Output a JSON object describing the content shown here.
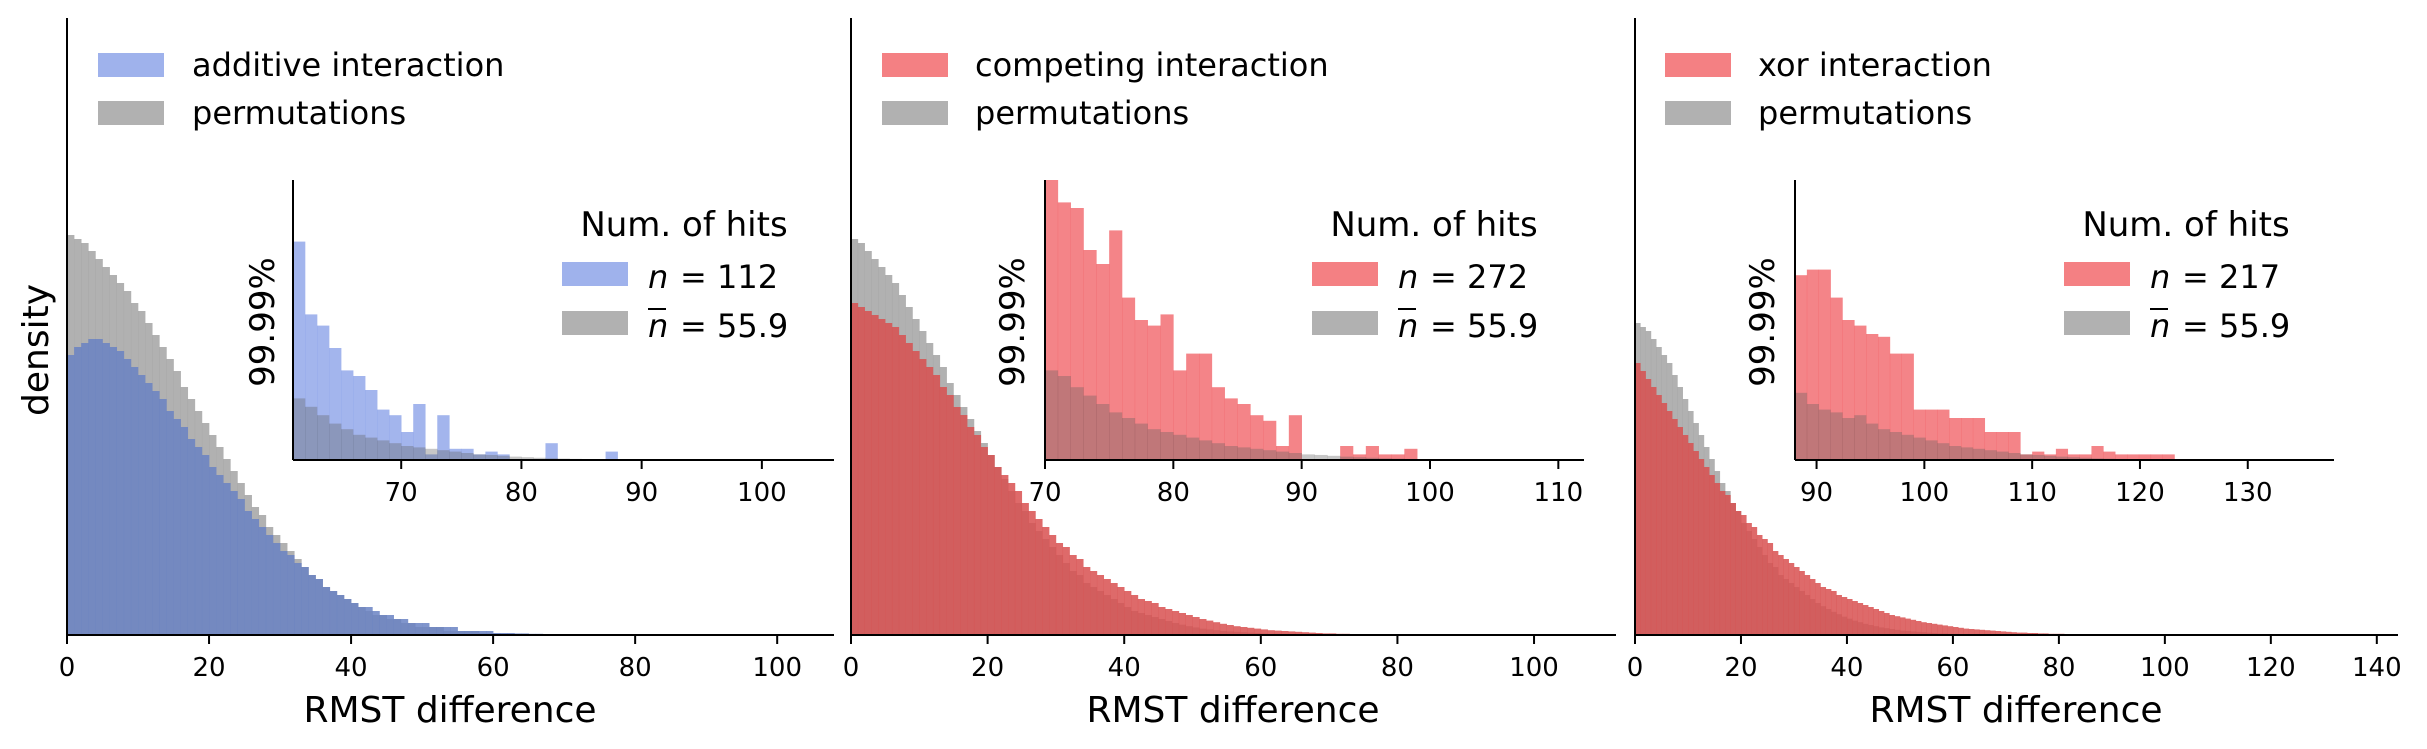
{
  "y_axis_label": "density",
  "colors": {
    "blue": "#7f98e6",
    "red": "#f0555a",
    "gray": "#9e9e9e",
    "blue_overlap": "#6a82c3",
    "red_overlap": "#d85050"
  },
  "chart_data": [
    {
      "type": "bar",
      "subtype": "overlaid-histogram",
      "xlabel": "RMST difference",
      "ylabel": "density",
      "xlim": [
        0,
        108
      ],
      "xticks": [
        0,
        20,
        40,
        60,
        80,
        100
      ],
      "color": "blue",
      "legend": {
        "placement": "top-left",
        "entries": [
          "additive interaction",
          "permutations"
        ]
      },
      "main_bins": {
        "x_start": 0,
        "bin_width": 1,
        "interaction": [
          0.7,
          0.72,
          0.73,
          0.74,
          0.74,
          0.73,
          0.72,
          0.71,
          0.69,
          0.67,
          0.65,
          0.63,
          0.61,
          0.59,
          0.56,
          0.54,
          0.52,
          0.49,
          0.47,
          0.45,
          0.42,
          0.4,
          0.38,
          0.36,
          0.34,
          0.31,
          0.29,
          0.27,
          0.25,
          0.23,
          0.21,
          0.2,
          0.18,
          0.17,
          0.15,
          0.14,
          0.12,
          0.11,
          0.1,
          0.09,
          0.08,
          0.07,
          0.07,
          0.06,
          0.05,
          0.05,
          0.04,
          0.04,
          0.03,
          0.03,
          0.03,
          0.02,
          0.02,
          0.02,
          0.02,
          0.01,
          0.01,
          0.01,
          0.01,
          0.01,
          0.005,
          0.005,
          0.005,
          0.004,
          0.004,
          0.003,
          0.003,
          0.002,
          0.002,
          0.002,
          0.002,
          0.001,
          0.001,
          0.001,
          0.001,
          0.001,
          0.001,
          0.001,
          0.001,
          0.001
        ],
        "permutations": [
          1.0,
          0.99,
          0.98,
          0.96,
          0.94,
          0.92,
          0.9,
          0.88,
          0.86,
          0.83,
          0.81,
          0.78,
          0.75,
          0.72,
          0.69,
          0.66,
          0.62,
          0.59,
          0.56,
          0.53,
          0.5,
          0.47,
          0.44,
          0.41,
          0.38,
          0.35,
          0.32,
          0.3,
          0.27,
          0.25,
          0.23,
          0.21,
          0.19,
          0.17,
          0.15,
          0.14,
          0.12,
          0.11,
          0.1,
          0.09,
          0.08,
          0.07,
          0.06,
          0.05,
          0.05,
          0.04,
          0.04,
          0.03,
          0.03,
          0.02,
          0.02,
          0.02,
          0.02,
          0.01,
          0.01,
          0.01,
          0.01,
          0.01,
          0.005,
          0.005,
          0.004,
          0.003,
          0.003,
          0.002,
          0.002,
          0.002,
          0.001,
          0.001,
          0.001,
          0.001
        ]
      },
      "inset": {
        "ylabel": "99.99%",
        "xlim": [
          61,
          106
        ],
        "xticks": [
          70,
          80,
          90,
          100
        ],
        "legend_title": "Num. of hits",
        "n_label": "= 112",
        "nbar_label": "= 55.9",
        "bin_start": 61,
        "bin_width": 1,
        "interaction": [
          0.78,
          0.52,
          0.48,
          0.4,
          0.32,
          0.3,
          0.25,
          0.18,
          0.16,
          0.1,
          0.2,
          0.02,
          0.16,
          0.04,
          0.04,
          0.02,
          0.03,
          0.02,
          0,
          0,
          0,
          0.06,
          0,
          0,
          0,
          0,
          0.03
        ],
        "permutations": [
          0.22,
          0.19,
          0.16,
          0.13,
          0.11,
          0.09,
          0.08,
          0.07,
          0.06,
          0.05,
          0.045,
          0.04,
          0.035,
          0.03,
          0.025,
          0.02,
          0.018,
          0.015,
          0.012,
          0.01,
          0.008,
          0.006,
          0.005,
          0.004,
          0.003,
          0.002,
          0.001
        ]
      }
    },
    {
      "type": "bar",
      "subtype": "overlaid-histogram",
      "xlabel": "RMST difference",
      "xlim": [
        0,
        112
      ],
      "xticks": [
        0,
        20,
        40,
        60,
        80,
        100
      ],
      "color": "red",
      "legend": {
        "placement": "top-left",
        "entries": [
          "competing interaction",
          "permutations"
        ]
      },
      "main_bins": {
        "x_start": 0,
        "bin_width": 1,
        "interaction": [
          0.83,
          0.82,
          0.81,
          0.8,
          0.79,
          0.78,
          0.77,
          0.75,
          0.73,
          0.71,
          0.69,
          0.67,
          0.65,
          0.62,
          0.6,
          0.57,
          0.55,
          0.52,
          0.5,
          0.47,
          0.45,
          0.42,
          0.4,
          0.38,
          0.36,
          0.33,
          0.31,
          0.29,
          0.27,
          0.25,
          0.23,
          0.22,
          0.2,
          0.19,
          0.17,
          0.16,
          0.15,
          0.14,
          0.13,
          0.12,
          0.11,
          0.1,
          0.09,
          0.085,
          0.08,
          0.07,
          0.065,
          0.06,
          0.055,
          0.05,
          0.045,
          0.04,
          0.036,
          0.032,
          0.028,
          0.025,
          0.022,
          0.02,
          0.018,
          0.016,
          0.014,
          0.012,
          0.011,
          0.01,
          0.009,
          0.008,
          0.007,
          0.006,
          0.005,
          0.004,
          0.004,
          0.003,
          0.003,
          0.002,
          0.002,
          0.002,
          0.001,
          0.001,
          0.001,
          0.001
        ],
        "permutations": [
          0.99,
          0.98,
          0.96,
          0.94,
          0.92,
          0.9,
          0.88,
          0.85,
          0.82,
          0.79,
          0.76,
          0.73,
          0.7,
          0.67,
          0.63,
          0.6,
          0.57,
          0.54,
          0.51,
          0.48,
          0.45,
          0.42,
          0.39,
          0.36,
          0.33,
          0.31,
          0.28,
          0.26,
          0.24,
          0.22,
          0.2,
          0.18,
          0.16,
          0.15,
          0.13,
          0.12,
          0.11,
          0.1,
          0.09,
          0.08,
          0.07,
          0.06,
          0.055,
          0.05,
          0.045,
          0.04,
          0.035,
          0.03,
          0.026,
          0.022,
          0.019,
          0.016,
          0.014,
          0.012,
          0.01,
          0.009,
          0.008,
          0.007,
          0.006,
          0.005,
          0.004,
          0.003,
          0.003,
          0.002,
          0.002,
          0.002,
          0.001,
          0.001,
          0.001,
          0.001
        ]
      },
      "inset": {
        "ylabel": "99.99%",
        "xlim": [
          70,
          112
        ],
        "xticks": [
          70,
          80,
          90,
          100,
          110
        ],
        "legend_title": "Num. of hits",
        "n_label": "= 272",
        "nbar_label": "= 55.9",
        "bin_start": 70,
        "bin_width": 1,
        "interaction": [
          1.0,
          0.92,
          0.9,
          0.75,
          0.7,
          0.82,
          0.58,
          0.5,
          0.48,
          0.52,
          0.32,
          0.38,
          0.38,
          0.26,
          0.22,
          0.2,
          0.16,
          0.14,
          0.05,
          0.16,
          0,
          0,
          0,
          0.05,
          0.02,
          0.05,
          0.02,
          0.02,
          0.04
        ],
        "permutations": [
          0.32,
          0.3,
          0.26,
          0.23,
          0.2,
          0.17,
          0.15,
          0.13,
          0.11,
          0.1,
          0.09,
          0.08,
          0.07,
          0.06,
          0.05,
          0.045,
          0.04,
          0.035,
          0.03,
          0.025,
          0.02,
          0.018,
          0.015,
          0.012,
          0.01,
          0.008,
          0.006,
          0.005,
          0.004
        ]
      }
    },
    {
      "type": "bar",
      "subtype": "overlaid-histogram",
      "xlabel": "RMST difference",
      "xlim": [
        0,
        144
      ],
      "xticks": [
        0,
        20,
        40,
        60,
        80,
        100,
        120,
        140
      ],
      "color": "red",
      "legend": {
        "placement": "top-left",
        "entries": [
          "xor interaction",
          "permutations"
        ]
      },
      "main_bins": {
        "x_start": 0,
        "bin_width": 1,
        "interaction": [
          0.68,
          0.66,
          0.64,
          0.62,
          0.6,
          0.58,
          0.56,
          0.54,
          0.52,
          0.5,
          0.48,
          0.46,
          0.44,
          0.42,
          0.4,
          0.38,
          0.36,
          0.35,
          0.33,
          0.31,
          0.3,
          0.28,
          0.27,
          0.25,
          0.24,
          0.23,
          0.21,
          0.2,
          0.19,
          0.18,
          0.17,
          0.16,
          0.15,
          0.14,
          0.13,
          0.12,
          0.115,
          0.11,
          0.1,
          0.095,
          0.09,
          0.085,
          0.08,
          0.075,
          0.07,
          0.065,
          0.06,
          0.055,
          0.05,
          0.047,
          0.044,
          0.041,
          0.038,
          0.035,
          0.032,
          0.03,
          0.028,
          0.026,
          0.024,
          0.022,
          0.02,
          0.018,
          0.016,
          0.015,
          0.014,
          0.013,
          0.012,
          0.011,
          0.01,
          0.009,
          0.008,
          0.007,
          0.006,
          0.006,
          0.005,
          0.005,
          0.004,
          0.004,
          0.003,
          0.003,
          0.003,
          0.002,
          0.002,
          0.002,
          0.002,
          0.002,
          0.001,
          0.001,
          0.001,
          0.001,
          0.001,
          0.001,
          0.001,
          0.001,
          0.001,
          0.001,
          0.001,
          0.001,
          0.001,
          0.001,
          0.001,
          0.001,
          0.001
        ],
        "permutations": [
          0.78,
          0.77,
          0.76,
          0.74,
          0.72,
          0.7,
          0.68,
          0.65,
          0.62,
          0.59,
          0.56,
          0.53,
          0.5,
          0.47,
          0.44,
          0.41,
          0.38,
          0.36,
          0.33,
          0.31,
          0.28,
          0.26,
          0.24,
          0.22,
          0.2,
          0.18,
          0.17,
          0.15,
          0.14,
          0.13,
          0.12,
          0.11,
          0.1,
          0.09,
          0.08,
          0.072,
          0.065,
          0.058,
          0.052,
          0.046,
          0.041,
          0.036,
          0.032,
          0.028,
          0.025,
          0.022,
          0.019,
          0.017,
          0.015,
          0.013,
          0.011,
          0.01,
          0.009,
          0.008,
          0.007,
          0.006,
          0.005,
          0.004,
          0.004,
          0.003,
          0.003,
          0.002,
          0.002,
          0.002,
          0.001,
          0.001,
          0.001,
          0.001
        ]
      },
      "inset": {
        "ylabel": "99.99%",
        "xlim": [
          88,
          138
        ],
        "xticks": [
          90,
          100,
          110,
          120,
          130
        ],
        "legend_title": "Num. of hits",
        "n_label": "= 217",
        "nbar_label": "= 55.9",
        "bin_start": 88,
        "bin_width": 1.1,
        "interaction": [
          0.66,
          0.68,
          0.68,
          0.58,
          0.5,
          0.48,
          0.45,
          0.44,
          0.38,
          0.38,
          0.18,
          0.18,
          0.18,
          0.15,
          0.15,
          0.15,
          0.1,
          0.1,
          0.1,
          0.02,
          0.03,
          0.02,
          0.04,
          0.02,
          0.02,
          0.05,
          0.03,
          0.02,
          0.02,
          0.02,
          0.02,
          0.02
        ],
        "permutations": [
          0.24,
          0.2,
          0.18,
          0.17,
          0.15,
          0.16,
          0.13,
          0.11,
          0.1,
          0.09,
          0.08,
          0.07,
          0.06,
          0.05,
          0.045,
          0.04,
          0.035,
          0.03,
          0.025,
          0.02,
          0.018,
          0.015,
          0.012,
          0.01,
          0.008,
          0.006,
          0.005,
          0.004,
          0.003,
          0.002,
          0.002,
          0.001
        ]
      }
    }
  ]
}
